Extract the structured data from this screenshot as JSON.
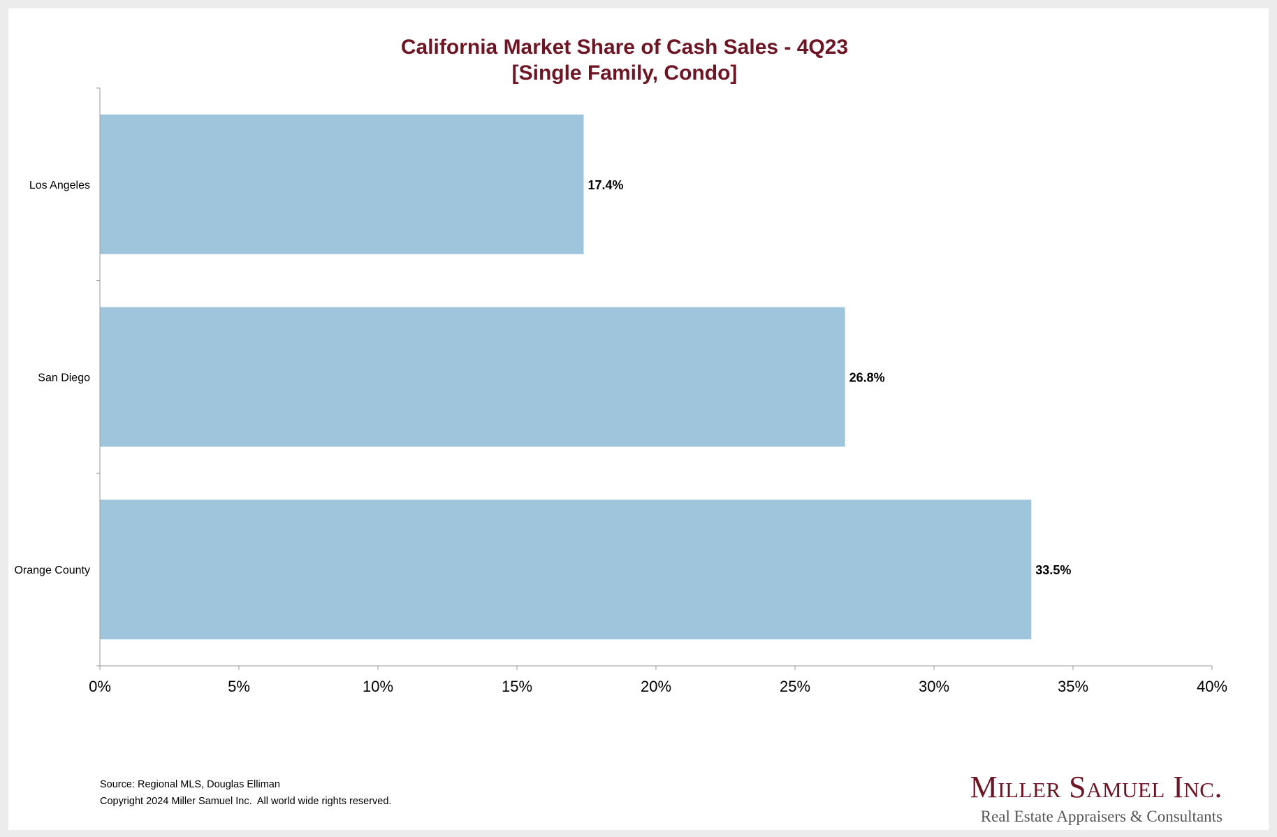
{
  "chart_data": {
    "type": "bar",
    "orientation": "horizontal",
    "title": "California Market Share of Cash Sales - 4Q23",
    "subtitle": "[Single Family, Condo]",
    "categories": [
      "Los Angeles",
      "San Diego",
      "Orange County"
    ],
    "values": [
      17.4,
      26.8,
      33.5
    ],
    "data_labels": [
      "17.4%",
      "26.8%",
      "33.5%"
    ],
    "xlim": [
      0,
      40
    ],
    "x_ticks": [
      0,
      5,
      10,
      15,
      20,
      25,
      30,
      35,
      40
    ],
    "x_tick_labels": [
      "0%",
      "5%",
      "10%",
      "15%",
      "20%",
      "25%",
      "30%",
      "35%",
      "40%"
    ],
    "xlabel": "",
    "ylabel": "",
    "grid": false,
    "legend": "none"
  },
  "colors": {
    "bar_fill": "#9ec5dc",
    "title": "#6e1423",
    "axis": "#999999"
  },
  "footer": {
    "source": "Source: Regional MLS, Douglas Elliman",
    "copyright": "Copyright 2024 Miller Samuel Inc.  All world wide rights reserved."
  },
  "logo": {
    "name": "Miller Samuel Inc.",
    "tagline": "Real Estate Appraisers & Consultants"
  }
}
